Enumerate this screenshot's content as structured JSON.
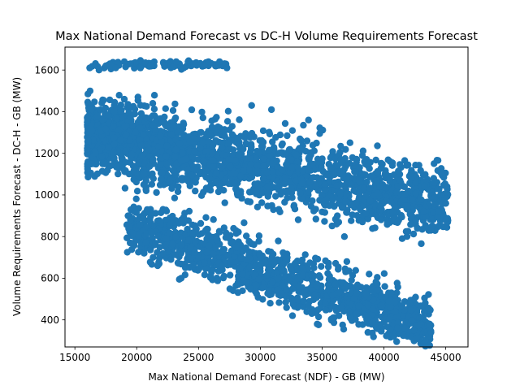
{
  "chart_data": {
    "type": "scatter",
    "title": "Max National Demand Forecast vs DC-H Volume Requirements Forecast",
    "xlabel": "Max National Demand Forecast (NDF) - GB (MW)",
    "ylabel": "Volume Requirements Forecast - DC-H - GB (MW)",
    "xlim": [
      14200,
      46800
    ],
    "ylim": [
      270,
      1710
    ],
    "x_ticks": [
      15000,
      20000,
      25000,
      30000,
      35000,
      40000,
      45000
    ],
    "y_ticks": [
      400,
      600,
      800,
      1000,
      1200,
      1400,
      1600
    ],
    "grid": false,
    "marker_color": "#1f77b4",
    "clusters": [
      {
        "name": "upper",
        "x_range": [
          16000,
          45200
        ],
        "y_at_xmin": 1290,
        "y_at_xmax": 960,
        "spread": 170,
        "count": 2200
      },
      {
        "name": "lower",
        "x_range": [
          19200,
          43800
        ],
        "y_at_xmin": 860,
        "y_at_xmax": 370,
        "spread": 130,
        "count": 1300
      },
      {
        "name": "top",
        "x_range": [
          16200,
          27600
        ],
        "y_at_xmin": 1625,
        "y_at_xmax": 1625,
        "spread": 20,
        "count": 80
      }
    ],
    "points": [
      [
        16000,
        1350
      ],
      [
        16200,
        1610
      ],
      [
        16100,
        1260
      ],
      [
        17500,
        1620
      ],
      [
        18300,
        1610
      ],
      [
        19000,
        1640
      ],
      [
        19100,
        1615
      ],
      [
        19500,
        1630
      ],
      [
        20300,
        1610
      ],
      [
        20700,
        1635
      ],
      [
        21100,
        1620
      ],
      [
        23200,
        1640
      ],
      [
        23800,
        1610
      ],
      [
        24200,
        1645
      ],
      [
        24600,
        1630
      ],
      [
        25800,
        1640
      ],
      [
        26700,
        1640
      ],
      [
        27300,
        1610
      ],
      [
        19300,
        900
      ],
      [
        19500,
        880
      ],
      [
        20600,
        720
      ],
      [
        21200,
        820
      ],
      [
        18200,
        1400
      ],
      [
        19000,
        1460
      ],
      [
        20100,
        1470
      ],
      [
        21300,
        1440
      ],
      [
        29300,
        1430
      ],
      [
        30900,
        1410
      ],
      [
        33900,
        1360
      ],
      [
        34900,
        1310
      ],
      [
        37800,
        1170
      ],
      [
        39800,
        1130
      ],
      [
        41300,
        1070
      ],
      [
        43300,
        1040
      ],
      [
        44400,
        920
      ],
      [
        45000,
        960
      ],
      [
        45000,
        880
      ],
      [
        36800,
        800
      ],
      [
        23600,
        600
      ],
      [
        27800,
        540
      ],
      [
        30800,
        480
      ],
      [
        32600,
        420
      ],
      [
        34600,
        380
      ],
      [
        35900,
        410
      ],
      [
        38700,
        340
      ],
      [
        39400,
        360
      ],
      [
        41100,
        360
      ],
      [
        42400,
        350
      ],
      [
        43800,
        340
      ],
      [
        43700,
        380
      ],
      [
        42800,
        375
      ],
      [
        40600,
        530
      ],
      [
        38800,
        620
      ],
      [
        37000,
        680
      ]
    ]
  }
}
